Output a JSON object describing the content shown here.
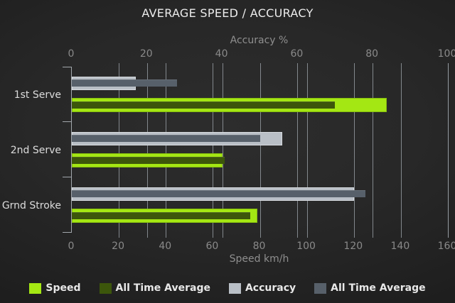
{
  "title": "AVERAGE SPEED / ACCURACY",
  "chart_data": {
    "type": "bar",
    "orientation": "horizontal",
    "categories": [
      "1st Serve",
      "2nd Serve",
      "Grnd Stroke"
    ],
    "series": [
      {
        "name": "Speed",
        "axis": "bottom",
        "role": "main",
        "color": "#a4e713",
        "values": [
          134,
          64,
          79
        ]
      },
      {
        "name": "All Time Average",
        "axis": "bottom",
        "role": "overlay",
        "color": "#3c560b",
        "values": [
          112,
          65,
          76
        ]
      },
      {
        "name": "Accuracy",
        "axis": "top",
        "role": "main",
        "color": "#b9bfc6",
        "values": [
          17,
          56,
          75
        ]
      },
      {
        "name": "All Time Average",
        "axis": "top",
        "role": "overlay",
        "color": "#57606a",
        "values": [
          28,
          50,
          78
        ]
      }
    ],
    "axes": {
      "top": {
        "label": "Accuracy %",
        "min": 0,
        "max": 100,
        "ticks": [
          0,
          20,
          40,
          60,
          80,
          100
        ]
      },
      "bottom": {
        "label": "Speed km/h",
        "min": 0,
        "max": 160,
        "ticks": [
          0,
          20,
          40,
          60,
          80,
          100,
          120,
          140,
          160
        ]
      }
    },
    "grid": true,
    "legend_position": "bottom"
  },
  "colors": {
    "background_center": "#2d2d2d",
    "background_edge": "#151515",
    "grid": "#9aa0a6",
    "axis": "#a2a7ac",
    "title_text": "#ececec",
    "muted_text": "#8a8a8a",
    "category_text": "#dcdcdc",
    "legend_text": "#e8e8e8"
  }
}
